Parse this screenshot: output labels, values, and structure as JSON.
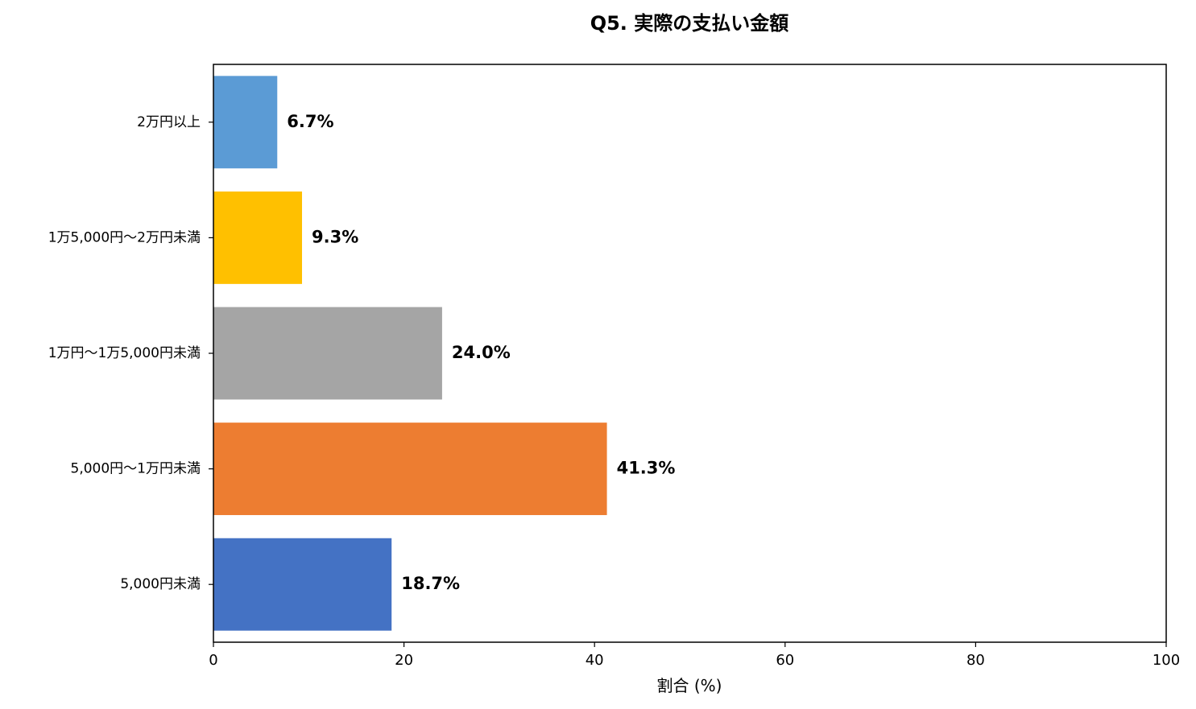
{
  "chart_data": {
    "type": "bar",
    "orientation": "horizontal",
    "title": "Q5. 実際の支払い金額",
    "xlabel": "割合 (%)",
    "ylabel": "",
    "xlim": [
      0,
      100
    ],
    "xticks": [
      0,
      20,
      40,
      60,
      80,
      100
    ],
    "grid": false,
    "categories": [
      "2万円以上",
      "1万5,000円〜2万円未満",
      "1万円〜1万5,000円未満",
      "5,000円〜1万円未満",
      "5,000円未満"
    ],
    "values": [
      6.7,
      9.3,
      24.0,
      41.3,
      18.7
    ],
    "value_labels": [
      "6.7%",
      "9.3%",
      "24.0%",
      "41.3%",
      "18.7%"
    ],
    "colors": [
      "#5B9BD5",
      "#FFC000",
      "#A5A5A5",
      "#ED7D31",
      "#4472C4"
    ]
  }
}
